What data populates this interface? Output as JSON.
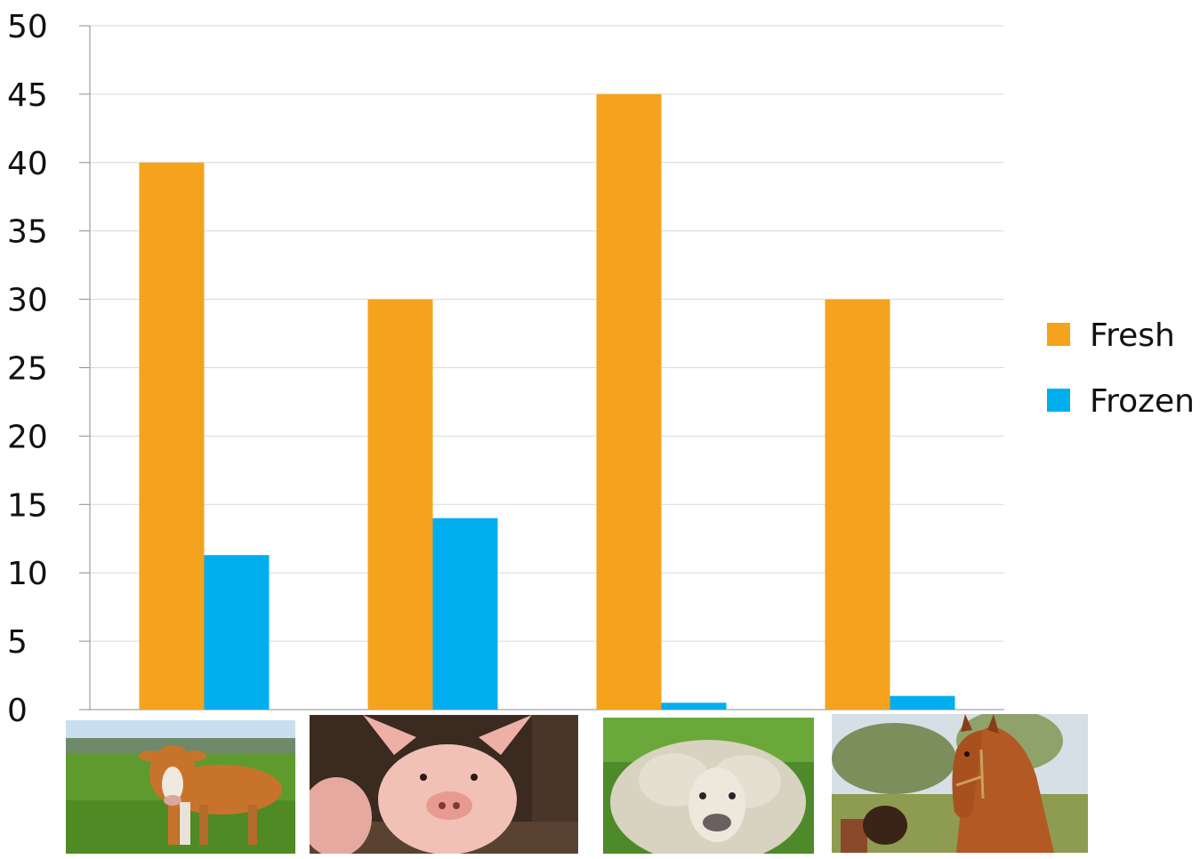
{
  "chart_data": {
    "type": "bar",
    "categories": [
      "cow",
      "pig",
      "sheep",
      "horse"
    ],
    "category_display": "photo",
    "series": [
      {
        "name": "Fresh",
        "color": "#f5a31d",
        "values": [
          40,
          30,
          45,
          30
        ]
      },
      {
        "name": "Frozen",
        "color": "#00aeef",
        "values": [
          11.3,
          14,
          0.5,
          1
        ]
      }
    ],
    "ylim": [
      0,
      50
    ],
    "yticks": [
      0,
      5,
      10,
      15,
      20,
      25,
      30,
      35,
      40,
      45,
      50
    ],
    "ytick_labels": [
      "0",
      "5",
      "10",
      "15",
      "20",
      "25",
      "30",
      "35",
      "40",
      "45",
      "50"
    ],
    "grid": true,
    "legend_position": "right",
    "title": "",
    "xlabel": "",
    "ylabel": ""
  },
  "category_images": [
    {
      "icon": "cow-photo-icon"
    },
    {
      "icon": "pig-photo-icon"
    },
    {
      "icon": "sheep-photo-icon"
    },
    {
      "icon": "horse-photo-icon"
    }
  ]
}
